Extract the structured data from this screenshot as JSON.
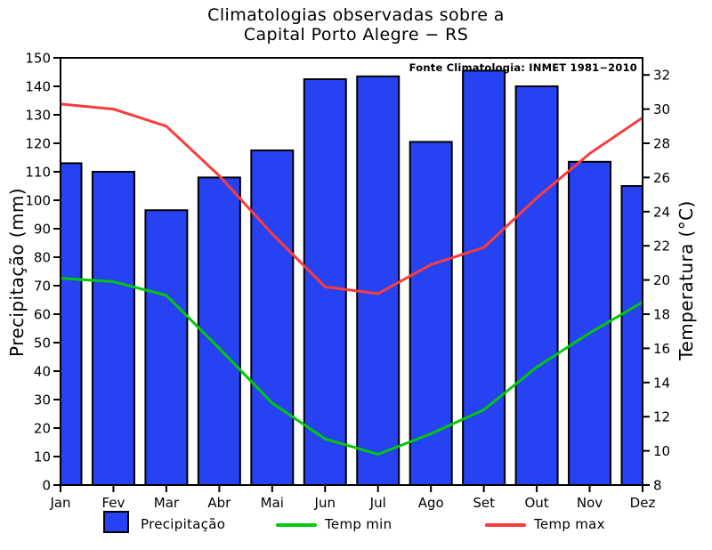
{
  "title": {
    "line1": "Climatologias observadas sobre a",
    "line2": "Capital Porto Alegre − RS"
  },
  "source_note": "Fonte Climatologia: INMET 1981−2010",
  "axis_labels": {
    "left": "Precipitação (mm)",
    "right": "Temperatura (°C)"
  },
  "legend": {
    "precipitation": "Precipitação",
    "temp_min": "Temp min",
    "temp_max": "Temp max"
  },
  "colors": {
    "background": "#ffffff",
    "frame": "#000000",
    "text": "#000000",
    "bar_fill": "#2642f2",
    "bar_stroke": "#000000",
    "temp_min_line": "#00c80a",
    "temp_max_line": "#fa3c3c"
  },
  "chart_data": {
    "type": "bar",
    "title": "Climatologias observadas sobre a Capital Porto Alegre − RS",
    "categories": [
      "Jan",
      "Fev",
      "Mar",
      "Abr",
      "Mai",
      "Jun",
      "Jul",
      "Ago",
      "Set",
      "Out",
      "Nov",
      "Dez"
    ],
    "series": [
      {
        "name": "Precipitação",
        "type": "bar",
        "axis": "left",
        "color": "#2642f2",
        "values": [
          113,
          110,
          96.5,
          108,
          117.5,
          142.5,
          143.5,
          120.5,
          145.5,
          140,
          113.5,
          105
        ]
      },
      {
        "name": "Temp min",
        "type": "line",
        "axis": "right",
        "color": "#00c80a",
        "values": [
          20.1,
          19.9,
          19.1,
          16.0,
          12.8,
          10.7,
          9.8,
          11.0,
          12.4,
          14.9,
          16.9,
          18.7
        ]
      },
      {
        "name": "Temp max",
        "type": "line",
        "axis": "right",
        "color": "#fa3c3c",
        "values": [
          30.3,
          30.0,
          29.0,
          26.1,
          22.7,
          19.6,
          19.2,
          20.9,
          21.9,
          24.8,
          27.4,
          29.5
        ]
      }
    ],
    "left_axis": {
      "label": "Precipitação (mm)",
      "min": 0,
      "max": 150,
      "ticks": [
        0,
        10,
        20,
        30,
        40,
        50,
        60,
        70,
        80,
        90,
        100,
        110,
        120,
        130,
        140,
        150
      ]
    },
    "right_axis": {
      "label": "Temperatura (°C)",
      "min": 8,
      "max": 33,
      "ticks": [
        8,
        10,
        12,
        14,
        16,
        18,
        20,
        22,
        24,
        26,
        28,
        30,
        32
      ]
    },
    "grid": false,
    "legend_position": "bottom"
  }
}
